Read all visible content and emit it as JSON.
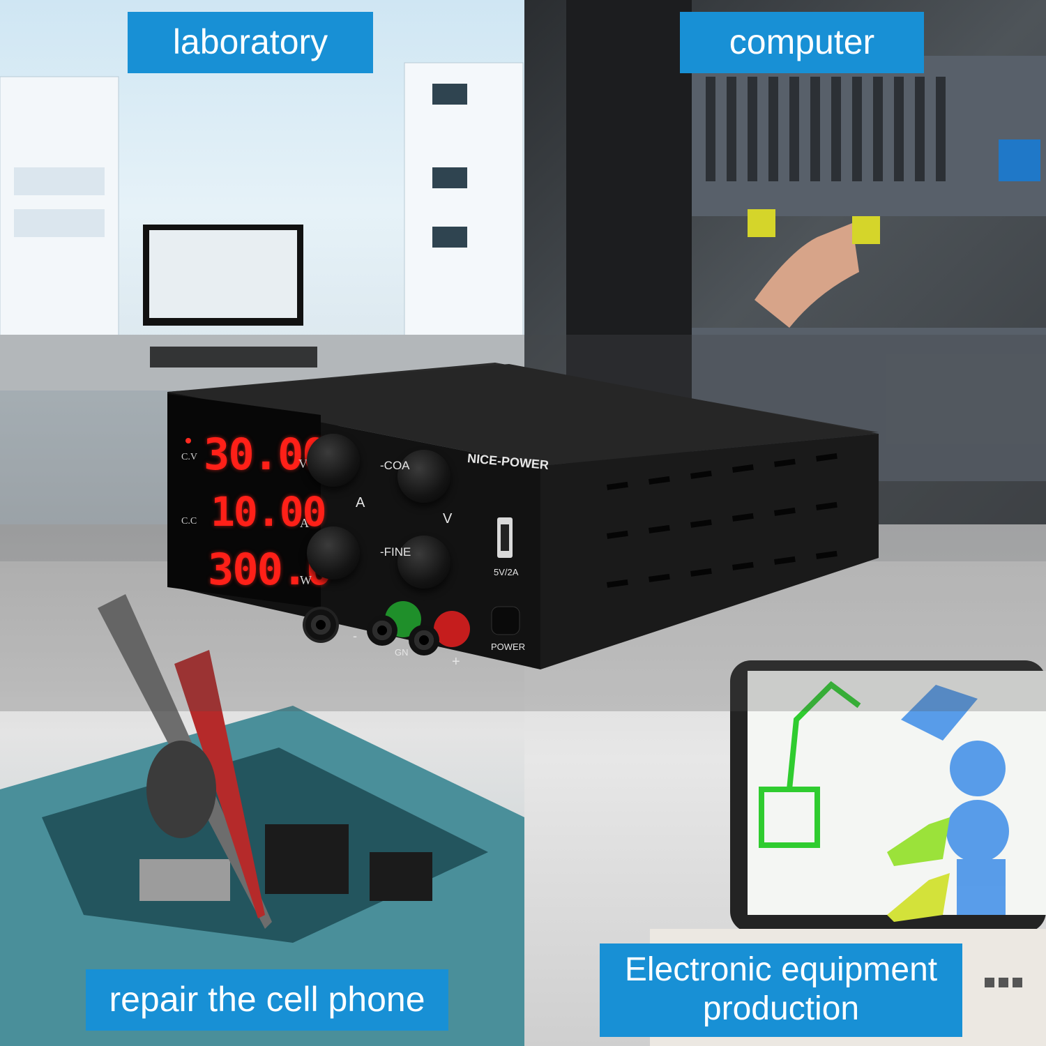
{
  "labels": {
    "laboratory": "laboratory",
    "computer": "computer",
    "repair": "repair the cell phone",
    "production_line1": "Electronic equipment",
    "production_line2": "production"
  },
  "device": {
    "brand": "NICE-POWER",
    "display": {
      "voltage": "30.00",
      "current": "10.00",
      "power": "300.0",
      "unit_v": "V",
      "unit_a": "A",
      "unit_w": "W",
      "mode_cv": "C.V",
      "mode_cc": "C.C"
    },
    "knob_labels": {
      "coarse": "-COA",
      "fine": "-FINE",
      "current": "A",
      "voltage": "V"
    },
    "usb_label": "5V/2A",
    "power_label": "POWER",
    "terminal_labels": {
      "negative": "-",
      "ground": "GN",
      "positive": "+"
    }
  },
  "colors": {
    "label_bg": "#1890d5",
    "display_digits": "#ff2018",
    "case": "#1c1c1c"
  }
}
